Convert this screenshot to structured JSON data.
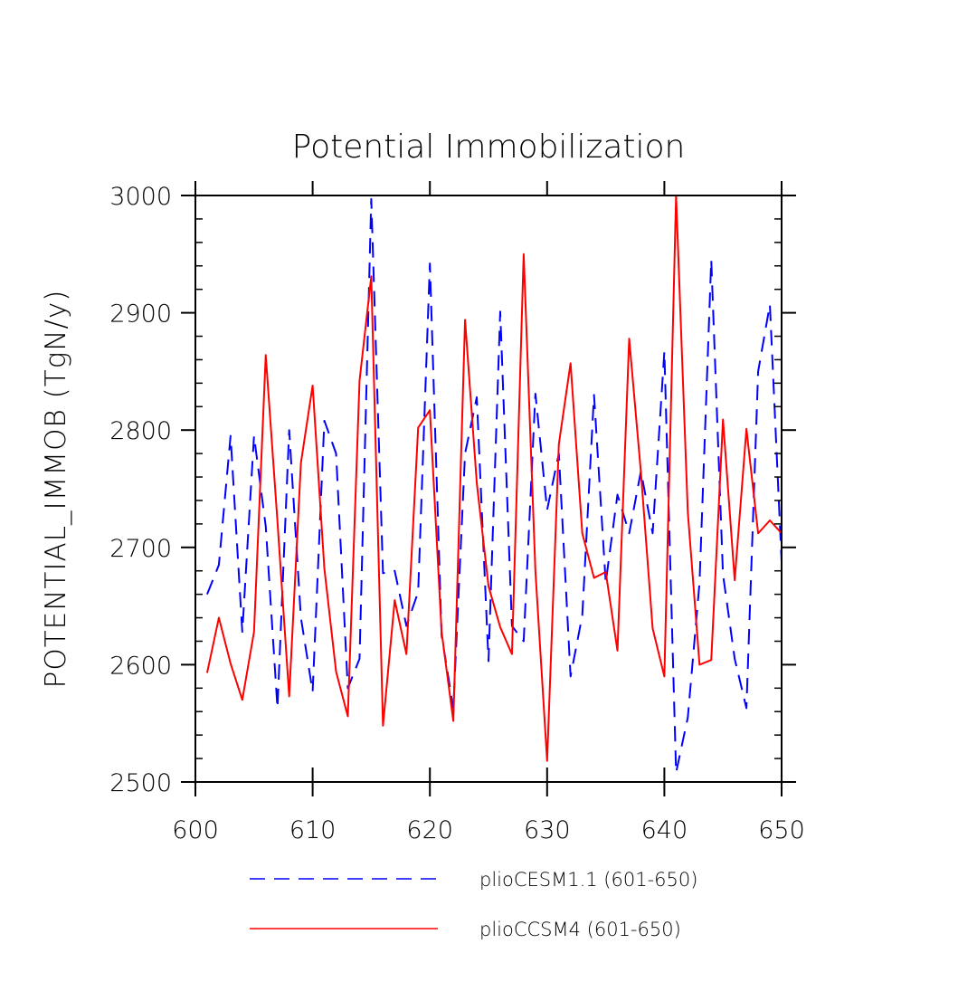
{
  "chart_data": {
    "type": "line",
    "title": "Potential Immobilization",
    "xlabel": "",
    "ylabel": "POTENTIAL_IMMOB   (TgN/y)",
    "xlim": [
      600,
      650
    ],
    "ylim": [
      2500,
      3000
    ],
    "x_ticks": [
      600,
      610,
      620,
      630,
      640,
      650
    ],
    "y_ticks": [
      2500,
      2600,
      2700,
      2800,
      2900,
      3000
    ],
    "x_tick_labels": [
      "600",
      "610",
      "620",
      "630",
      "640",
      "650"
    ],
    "y_tick_labels": [
      "2500",
      "2600",
      "2700",
      "2800",
      "2900",
      "3000"
    ],
    "grid": false,
    "legend": "bottom",
    "x": [
      601,
      602,
      603,
      604,
      605,
      606,
      607,
      608,
      609,
      610,
      611,
      612,
      613,
      614,
      615,
      616,
      617,
      618,
      619,
      620,
      621,
      622,
      623,
      624,
      625,
      626,
      627,
      628,
      629,
      630,
      631,
      632,
      633,
      634,
      635,
      636,
      637,
      638,
      639,
      640,
      641,
      642,
      643,
      644,
      645,
      646,
      647,
      648,
      649,
      650
    ],
    "series": [
      {
        "name": "plioCESM1.1 (601-650)",
        "color": "#0000ff",
        "dash": "dashed",
        "values": [
          2660,
          2685,
          2795,
          2628,
          2795,
          2718,
          2563,
          2800,
          2640,
          2577,
          2808,
          2780,
          2580,
          2605,
          2997,
          2678,
          2680,
          2633,
          2662,
          2942,
          2625,
          2563,
          2780,
          2828,
          2603,
          2901,
          2633,
          2620,
          2831,
          2732,
          2780,
          2590,
          2642,
          2830,
          2670,
          2745,
          2712,
          2765,
          2712,
          2867,
          2508,
          2555,
          2670,
          2945,
          2677,
          2605,
          2563,
          2850,
          2907,
          2688
        ]
      },
      {
        "name": "plioCCSM4 (601-650)",
        "color": "#ff0000",
        "dash": "solid",
        "values": [
          2593,
          2640,
          2601,
          2570,
          2628,
          2864,
          2722,
          2573,
          2772,
          2838,
          2682,
          2594,
          2556,
          2842,
          2931,
          2548,
          2655,
          2609,
          2802,
          2817,
          2628,
          2552,
          2894,
          2755,
          2667,
          2632,
          2609,
          2950,
          2680,
          2518,
          2788,
          2857,
          2712,
          2674,
          2679,
          2612,
          2878,
          2764,
          2631,
          2590,
          3000,
          2730,
          2600,
          2604,
          2809,
          2672,
          2801,
          2712,
          2723,
          2712
        ]
      }
    ]
  }
}
